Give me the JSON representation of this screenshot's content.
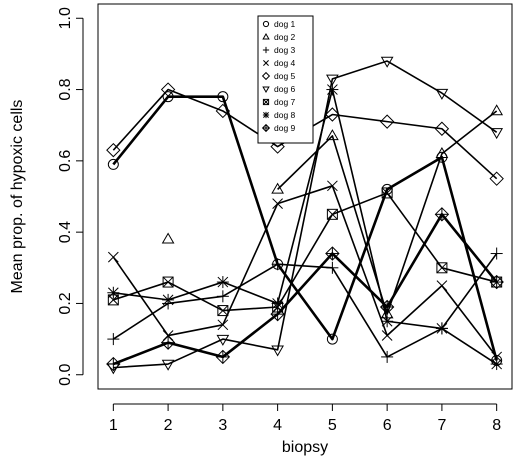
{
  "chart_data": {
    "type": "line",
    "title": "",
    "xlabel": "biopsy",
    "ylabel": "Mean prop. of hypoxic cells",
    "xlim": [
      0.72,
      8.28
    ],
    "ylim": [
      -0.04,
      1.04
    ],
    "x_ticks": [
      "1",
      "2",
      "3",
      "4",
      "5",
      "6",
      "7",
      "8"
    ],
    "y_ticks": [
      "0.0",
      "0.2",
      "0.4",
      "0.6",
      "0.8",
      "1.0"
    ],
    "y_tick_values": [
      0.0,
      0.2,
      0.4,
      0.6,
      0.8,
      1.0
    ],
    "legend_position": "top-center",
    "x": [
      1,
      2,
      3,
      4,
      5,
      6,
      7,
      8
    ],
    "series": [
      {
        "name": "dog 1",
        "marker": "circle",
        "thick": true,
        "values": [
          0.59,
          0.78,
          0.78,
          0.31,
          0.1,
          0.52,
          0.61,
          0.04
        ]
      },
      {
        "name": "dog 2",
        "marker": "triangle",
        "thick": false,
        "values": [
          null,
          0.38,
          null,
          0.52,
          0.67,
          0.17,
          0.62,
          0.74
        ]
      },
      {
        "name": "dog 3",
        "marker": "plus",
        "thick": false,
        "values": [
          0.1,
          0.2,
          0.22,
          0.31,
          0.3,
          0.05,
          0.13,
          0.34
        ]
      },
      {
        "name": "dog 4",
        "marker": "cross",
        "thick": false,
        "values": [
          0.33,
          0.11,
          0.14,
          0.48,
          0.53,
          0.11,
          0.25,
          0.05
        ]
      },
      {
        "name": "dog 5",
        "marker": "diamond",
        "thick": false,
        "values": [
          0.63,
          0.8,
          0.74,
          0.64,
          0.73,
          0.71,
          0.69,
          0.55
        ]
      },
      {
        "name": "dog 6",
        "marker": "triangle-down",
        "thick": false,
        "values": [
          0.02,
          0.03,
          0.1,
          0.07,
          0.83,
          0.88,
          0.79,
          0.68
        ]
      },
      {
        "name": "dog 7",
        "marker": "square-cross",
        "thick": false,
        "values": [
          0.21,
          0.26,
          0.18,
          0.19,
          0.45,
          0.51,
          0.3,
          0.26
        ]
      },
      {
        "name": "dog 8",
        "marker": "asterisk",
        "thick": false,
        "values": [
          0.23,
          0.21,
          0.26,
          0.2,
          0.8,
          0.15,
          0.13,
          0.03
        ]
      },
      {
        "name": "dog 9",
        "marker": "diamond-plus",
        "thick": true,
        "values": [
          0.03,
          0.09,
          0.05,
          0.17,
          0.34,
          0.19,
          0.45,
          0.26
        ]
      }
    ]
  }
}
